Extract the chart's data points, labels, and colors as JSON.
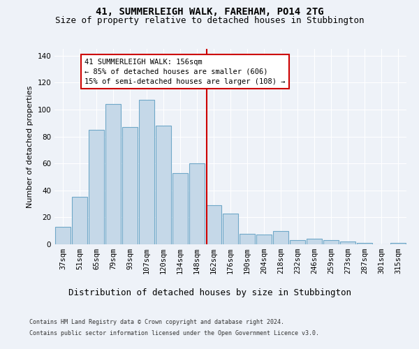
{
  "title": "41, SUMMERLEIGH WALK, FAREHAM, PO14 2TG",
  "subtitle": "Size of property relative to detached houses in Stubbington",
  "xlabel": "Distribution of detached houses by size in Stubbington",
  "ylabel": "Number of detached properties",
  "categories": [
    "37sqm",
    "51sqm",
    "65sqm",
    "79sqm",
    "93sqm",
    "107sqm",
    "120sqm",
    "134sqm",
    "148sqm",
    "162sqm",
    "176sqm",
    "190sqm",
    "204sqm",
    "218sqm",
    "232sqm",
    "246sqm",
    "259sqm",
    "273sqm",
    "287sqm",
    "301sqm",
    "315sqm"
  ],
  "values": [
    13,
    35,
    85,
    104,
    87,
    107,
    88,
    53,
    60,
    29,
    23,
    8,
    7,
    10,
    3,
    4,
    3,
    2,
    1,
    0,
    1
  ],
  "bar_color": "#c5d8e8",
  "bar_edge_color": "#6fa8c8",
  "highlight_line_color": "#cc0000",
  "annotation_line1": "41 SUMMERLEIGH WALK: 156sqm",
  "annotation_line2": "← 85% of detached houses are smaller (606)",
  "annotation_line3": "15% of semi-detached houses are larger (108) →",
  "annotation_box_color": "#ffffff",
  "annotation_box_edge": "#cc0000",
  "footer1": "Contains HM Land Registry data © Crown copyright and database right 2024.",
  "footer2": "Contains public sector information licensed under the Open Government Licence v3.0.",
  "ylim": [
    0,
    145
  ],
  "yticks": [
    0,
    20,
    40,
    60,
    80,
    100,
    120,
    140
  ],
  "title_fontsize": 10,
  "subtitle_fontsize": 9,
  "xlabel_fontsize": 9,
  "ylabel_fontsize": 8,
  "tick_fontsize": 7.5,
  "annotation_fontsize": 7.5,
  "footer_fontsize": 6,
  "bg_color": "#eef2f8",
  "plot_bg_color": "#eef2f8",
  "highlight_bin_index": 8,
  "highlight_bin_value": 156,
  "highlight_bin_low": 148,
  "highlight_bin_high": 162
}
